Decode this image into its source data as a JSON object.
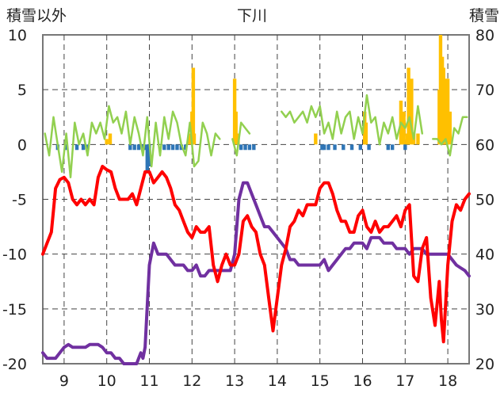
{
  "chart_data": {
    "type": "line",
    "title": "下川",
    "ylabel_left": "積雪以外",
    "ylabel_right": "積雪",
    "x_ticks": [
      "9",
      "10",
      "11",
      "12",
      "13",
      "14",
      "15",
      "16",
      "17",
      "18"
    ],
    "left_y_ticks": [
      "10",
      "5",
      "0",
      "-5",
      "-10",
      "-15",
      "-20"
    ],
    "right_y_ticks": [
      "80",
      "70",
      "60",
      "50",
      "40",
      "30",
      "20"
    ],
    "xlim": [
      8.5,
      18.5
    ],
    "ylim_left": [
      -20,
      10
    ],
    "ylim_right": [
      20,
      80
    ],
    "grid": true,
    "colors": {
      "temperature": "#ff0000",
      "snow_depth": "#7030a0",
      "wind": "#92d050",
      "precip_positive": "#ffc000",
      "precip_negative": "#2e75b6"
    },
    "series": [
      {
        "key": "temperature",
        "axis": "left",
        "kind": "line",
        "x": [
          8.5,
          8.6,
          8.7,
          8.75,
          8.8,
          8.9,
          9.0,
          9.1,
          9.2,
          9.3,
          9.4,
          9.5,
          9.6,
          9.7,
          9.8,
          9.9,
          10.0,
          10.1,
          10.2,
          10.3,
          10.4,
          10.5,
          10.6,
          10.7,
          10.8,
          10.9,
          11.0,
          11.1,
          11.2,
          11.3,
          11.4,
          11.5,
          11.6,
          11.7,
          11.8,
          11.9,
          12.0,
          12.1,
          12.2,
          12.3,
          12.4,
          12.5,
          12.6,
          12.7,
          12.8,
          12.9,
          13.0,
          13.1,
          13.2,
          13.3,
          13.4,
          13.5,
          13.6,
          13.7,
          13.8,
          13.9,
          14.0,
          14.1,
          14.2,
          14.3,
          14.4,
          14.5,
          14.6,
          14.7,
          14.8,
          14.9,
          15.0,
          15.1,
          15.2,
          15.3,
          15.4,
          15.5,
          15.6,
          15.7,
          15.8,
          15.9,
          16.0,
          16.1,
          16.2,
          16.3,
          16.4,
          16.5,
          16.6,
          16.7,
          16.8,
          16.9,
          17.0,
          17.1,
          17.2,
          17.3,
          17.4,
          17.5,
          17.6,
          17.7,
          17.8,
          17.85,
          17.9,
          18.0,
          18.1,
          18.2,
          18.3,
          18.4,
          18.5
        ],
        "values": [
          -10,
          -9,
          -8,
          -6,
          -4,
          -3.2,
          -3,
          -3.5,
          -5,
          -5.5,
          -5,
          -5.5,
          -5,
          -5.5,
          -3,
          -2,
          -2.3,
          -2.5,
          -4,
          -5,
          -5,
          -5,
          -4.5,
          -5.5,
          -4,
          -2.5,
          -2.5,
          -3.5,
          -3,
          -2.5,
          -3,
          -4,
          -5.5,
          -6,
          -7,
          -8,
          -8.5,
          -7.5,
          -8,
          -8,
          -7.5,
          -11,
          -12.5,
          -11,
          -10,
          -11,
          -11,
          -10,
          -7,
          -6.5,
          -7.5,
          -8,
          -10,
          -11,
          -14,
          -17,
          -14,
          -11,
          -9.5,
          -7.5,
          -7,
          -6,
          -6.5,
          -5.5,
          -5.5,
          -5.5,
          -4,
          -3.5,
          -3.5,
          -4.5,
          -6,
          -7,
          -7,
          -8,
          -8,
          -6.5,
          -6,
          -7.5,
          -8,
          -7,
          -8,
          -7.5,
          -7.5,
          -7,
          -6.5,
          -7.5,
          -6,
          -5.5,
          -12,
          -12.5,
          -9.5,
          -8.5,
          -14,
          -16.5,
          -12.5,
          -16,
          -18,
          -11,
          -7,
          -5.5,
          -6,
          -5,
          -4.5
        ]
      },
      {
        "key": "snow_depth",
        "axis": "right",
        "kind": "line",
        "x": [
          8.5,
          8.6,
          8.7,
          8.8,
          8.9,
          9.0,
          9.1,
          9.2,
          9.3,
          9.4,
          9.5,
          9.6,
          9.7,
          9.8,
          9.9,
          10.0,
          10.1,
          10.2,
          10.3,
          10.4,
          10.5,
          10.6,
          10.7,
          10.8,
          10.85,
          10.9,
          11.0,
          11.1,
          11.2,
          11.3,
          11.4,
          11.5,
          11.6,
          11.7,
          11.8,
          11.9,
          12.0,
          12.1,
          12.2,
          12.3,
          12.4,
          12.5,
          12.6,
          12.7,
          12.8,
          12.9,
          13.0,
          13.1,
          13.2,
          13.3,
          13.4,
          13.5,
          13.6,
          13.7,
          13.8,
          13.9,
          14.0,
          14.1,
          14.2,
          14.3,
          14.4,
          14.5,
          14.6,
          14.7,
          14.8,
          14.9,
          15.0,
          15.1,
          15.2,
          15.3,
          15.4,
          15.5,
          15.6,
          15.7,
          15.8,
          15.9,
          16.0,
          16.1,
          16.2,
          16.3,
          16.4,
          16.5,
          16.6,
          16.7,
          16.8,
          16.9,
          17.0,
          17.1,
          17.2,
          17.3,
          17.4,
          17.5,
          17.6,
          17.7,
          17.8,
          17.9,
          18.0,
          18.1,
          18.2,
          18.3,
          18.4,
          18.5
        ],
        "values": [
          22,
          21,
          21,
          21,
          22,
          23,
          23.5,
          23,
          23,
          23,
          23,
          23.5,
          23.5,
          23.5,
          23,
          22,
          22,
          21,
          21,
          20,
          20,
          20,
          20,
          22,
          21,
          23,
          38,
          42,
          40,
          40,
          40,
          39,
          38,
          38,
          38,
          37,
          37,
          38,
          36,
          36,
          37,
          37,
          37,
          37,
          37,
          37,
          40,
          50,
          53,
          53,
          51,
          49,
          47,
          45,
          45,
          44,
          43,
          42,
          41,
          39,
          39,
          38,
          38,
          38,
          38,
          38,
          38,
          39,
          37,
          38,
          39,
          40,
          41,
          41,
          42,
          42,
          42,
          41,
          43,
          43,
          43,
          42,
          42,
          42,
          41,
          41,
          41,
          40,
          41,
          41,
          41,
          40,
          40,
          40,
          40,
          40,
          40,
          39,
          38,
          37.5,
          37,
          36
        ]
      },
      {
        "key": "wind",
        "axis": "left",
        "kind": "line",
        "x": [
          8.55,
          8.65,
          8.75,
          8.85,
          8.95,
          9.05,
          9.15,
          9.25,
          9.35,
          9.45,
          9.55,
          9.65,
          9.75,
          9.85,
          9.95,
          10.05,
          10.15,
          10.25,
          10.35,
          10.45,
          10.55,
          10.65,
          10.75,
          10.85,
          10.95,
          11.05,
          11.15,
          11.25,
          11.35,
          11.45,
          11.55,
          11.65,
          11.75,
          11.85,
          11.95,
          12.05,
          12.15,
          12.25,
          12.35,
          12.45,
          12.55,
          12.65,
          null,
          12.95,
          13.05,
          13.15,
          13.25,
          13.35,
          null,
          14.1,
          14.2,
          14.3,
          14.4,
          14.5,
          14.6,
          14.7,
          14.8,
          14.9,
          15.0,
          15.1,
          15.2,
          15.3,
          15.4,
          15.5,
          15.6,
          15.7,
          15.8,
          15.9,
          16.0,
          16.1,
          16.2,
          16.3,
          16.4,
          16.5,
          16.6,
          16.7,
          16.8,
          16.9,
          17.0,
          17.1,
          17.2,
          17.3,
          17.4,
          null,
          17.65,
          17.75,
          17.85,
          17.95,
          18.05,
          18.15,
          18.25,
          18.35,
          18.45
        ],
        "values": [
          1,
          -1,
          2.5,
          0,
          -2.5,
          1,
          -3,
          2,
          0,
          1,
          -1,
          2,
          1,
          2,
          0.5,
          3.5,
          2,
          2.5,
          1,
          3,
          0,
          2.5,
          1,
          -1,
          2.5,
          -2,
          2,
          -1,
          2.5,
          0.5,
          3,
          2,
          0,
          -1,
          2,
          -2,
          -1.5,
          2,
          1,
          -1,
          1,
          0.5,
          null,
          0.5,
          -1,
          2,
          1.5,
          1,
          null,
          3,
          2.5,
          3,
          2,
          2.5,
          3,
          2,
          3.5,
          2.5,
          3.5,
          1,
          2,
          0.5,
          3,
          1,
          2.5,
          3,
          0.5,
          2.5,
          1,
          4.5,
          2,
          2.5,
          0,
          2,
          1,
          2.5,
          0.5,
          2,
          1.5,
          2.5,
          0.5,
          3.5,
          1,
          null,
          0.5,
          0.5,
          0,
          0.5,
          -1,
          1.5,
          1,
          2.5,
          2.5
        ]
      },
      {
        "key": "precipitation",
        "axis": "left",
        "kind": "bar",
        "x": [
          8.85,
          9.05,
          9.3,
          9.45,
          9.55,
          10.0,
          10.08,
          10.55,
          10.65,
          10.75,
          10.85,
          10.9,
          10.95,
          11.0,
          11.35,
          11.45,
          11.55,
          11.65,
          11.75,
          11.85,
          11.95,
          12.0,
          12.03,
          12.05,
          13.0,
          13.03,
          13.08,
          13.15,
          13.25,
          13.35,
          13.45,
          14.9,
          15.05,
          15.1,
          15.2,
          15.35,
          15.55,
          15.75,
          15.95,
          16.05,
          16.08,
          16.15,
          16.6,
          16.7,
          16.9,
          16.93,
          16.97,
          17.0,
          17.05,
          17.08,
          17.15,
          17.2,
          17.3,
          17.8,
          17.83,
          17.87,
          17.9,
          17.95,
          18.0,
          18.05
        ],
        "values": [
          -0.5,
          -0.5,
          -0.5,
          -0.5,
          -0.5,
          0.5,
          1,
          -0.5,
          -0.5,
          -0.5,
          -0.5,
          -0.5,
          -2.5,
          -2.0,
          -0.5,
          -0.5,
          -0.5,
          -0.5,
          -0.5,
          -0.5,
          1,
          3,
          7,
          1,
          6,
          3,
          1,
          -0.5,
          -0.5,
          -0.5,
          -0.5,
          1,
          -0.5,
          -0.5,
          -0.5,
          -0.5,
          -0.5,
          -0.5,
          -0.5,
          3,
          2,
          -0.5,
          -0.5,
          -0.5,
          4,
          2,
          3,
          -0.5,
          1,
          7,
          6,
          1,
          1,
          5,
          10,
          8,
          7,
          6,
          6,
          3
        ]
      }
    ]
  }
}
